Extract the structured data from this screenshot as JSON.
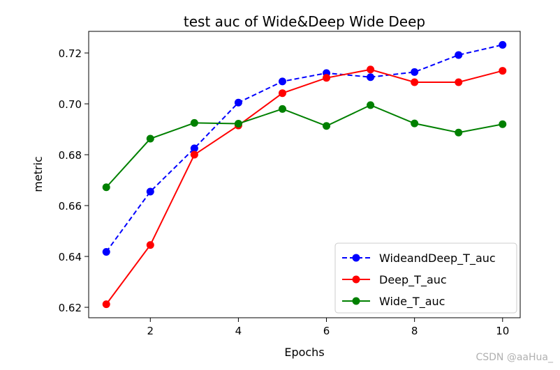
{
  "chart_data": {
    "type": "line",
    "title": "test auc of Wide&Deep Wide Deep",
    "xlabel": "Epochs",
    "ylabel": "metric",
    "x": [
      1,
      2,
      3,
      4,
      5,
      6,
      7,
      8,
      9,
      10
    ],
    "xlim": [
      0.6,
      10.4
    ],
    "ylim": [
      0.6159,
      0.7285
    ],
    "xticks": [
      2,
      4,
      6,
      8,
      10
    ],
    "yticks": [
      0.62,
      0.64,
      0.66,
      0.68,
      0.7,
      0.72
    ],
    "ytick_labels": [
      "0.62",
      "0.64",
      "0.66",
      "0.68",
      "0.70",
      "0.72"
    ],
    "grid": false,
    "legend_position": "lower-right",
    "series": [
      {
        "name": "WideandDeep_T_auc",
        "color": "#0000ff",
        "dashed": true,
        "values": [
          0.6418,
          0.6655,
          0.6825,
          0.7005,
          0.7088,
          0.7121,
          0.7105,
          0.7125,
          0.7192,
          0.7232
        ]
      },
      {
        "name": "Deep_T_auc",
        "color": "#ff0000",
        "dashed": false,
        "values": [
          0.6212,
          0.6445,
          0.68,
          0.6915,
          0.7042,
          0.7102,
          0.7135,
          0.7085,
          0.7085,
          0.713
        ]
      },
      {
        "name": "Wide_T_auc",
        "color": "#008000",
        "dashed": false,
        "values": [
          0.6672,
          0.6863,
          0.6925,
          0.6922,
          0.698,
          0.6913,
          0.6995,
          0.6923,
          0.6887,
          0.692
        ]
      }
    ]
  },
  "watermark": "CSDN @aaHua_"
}
